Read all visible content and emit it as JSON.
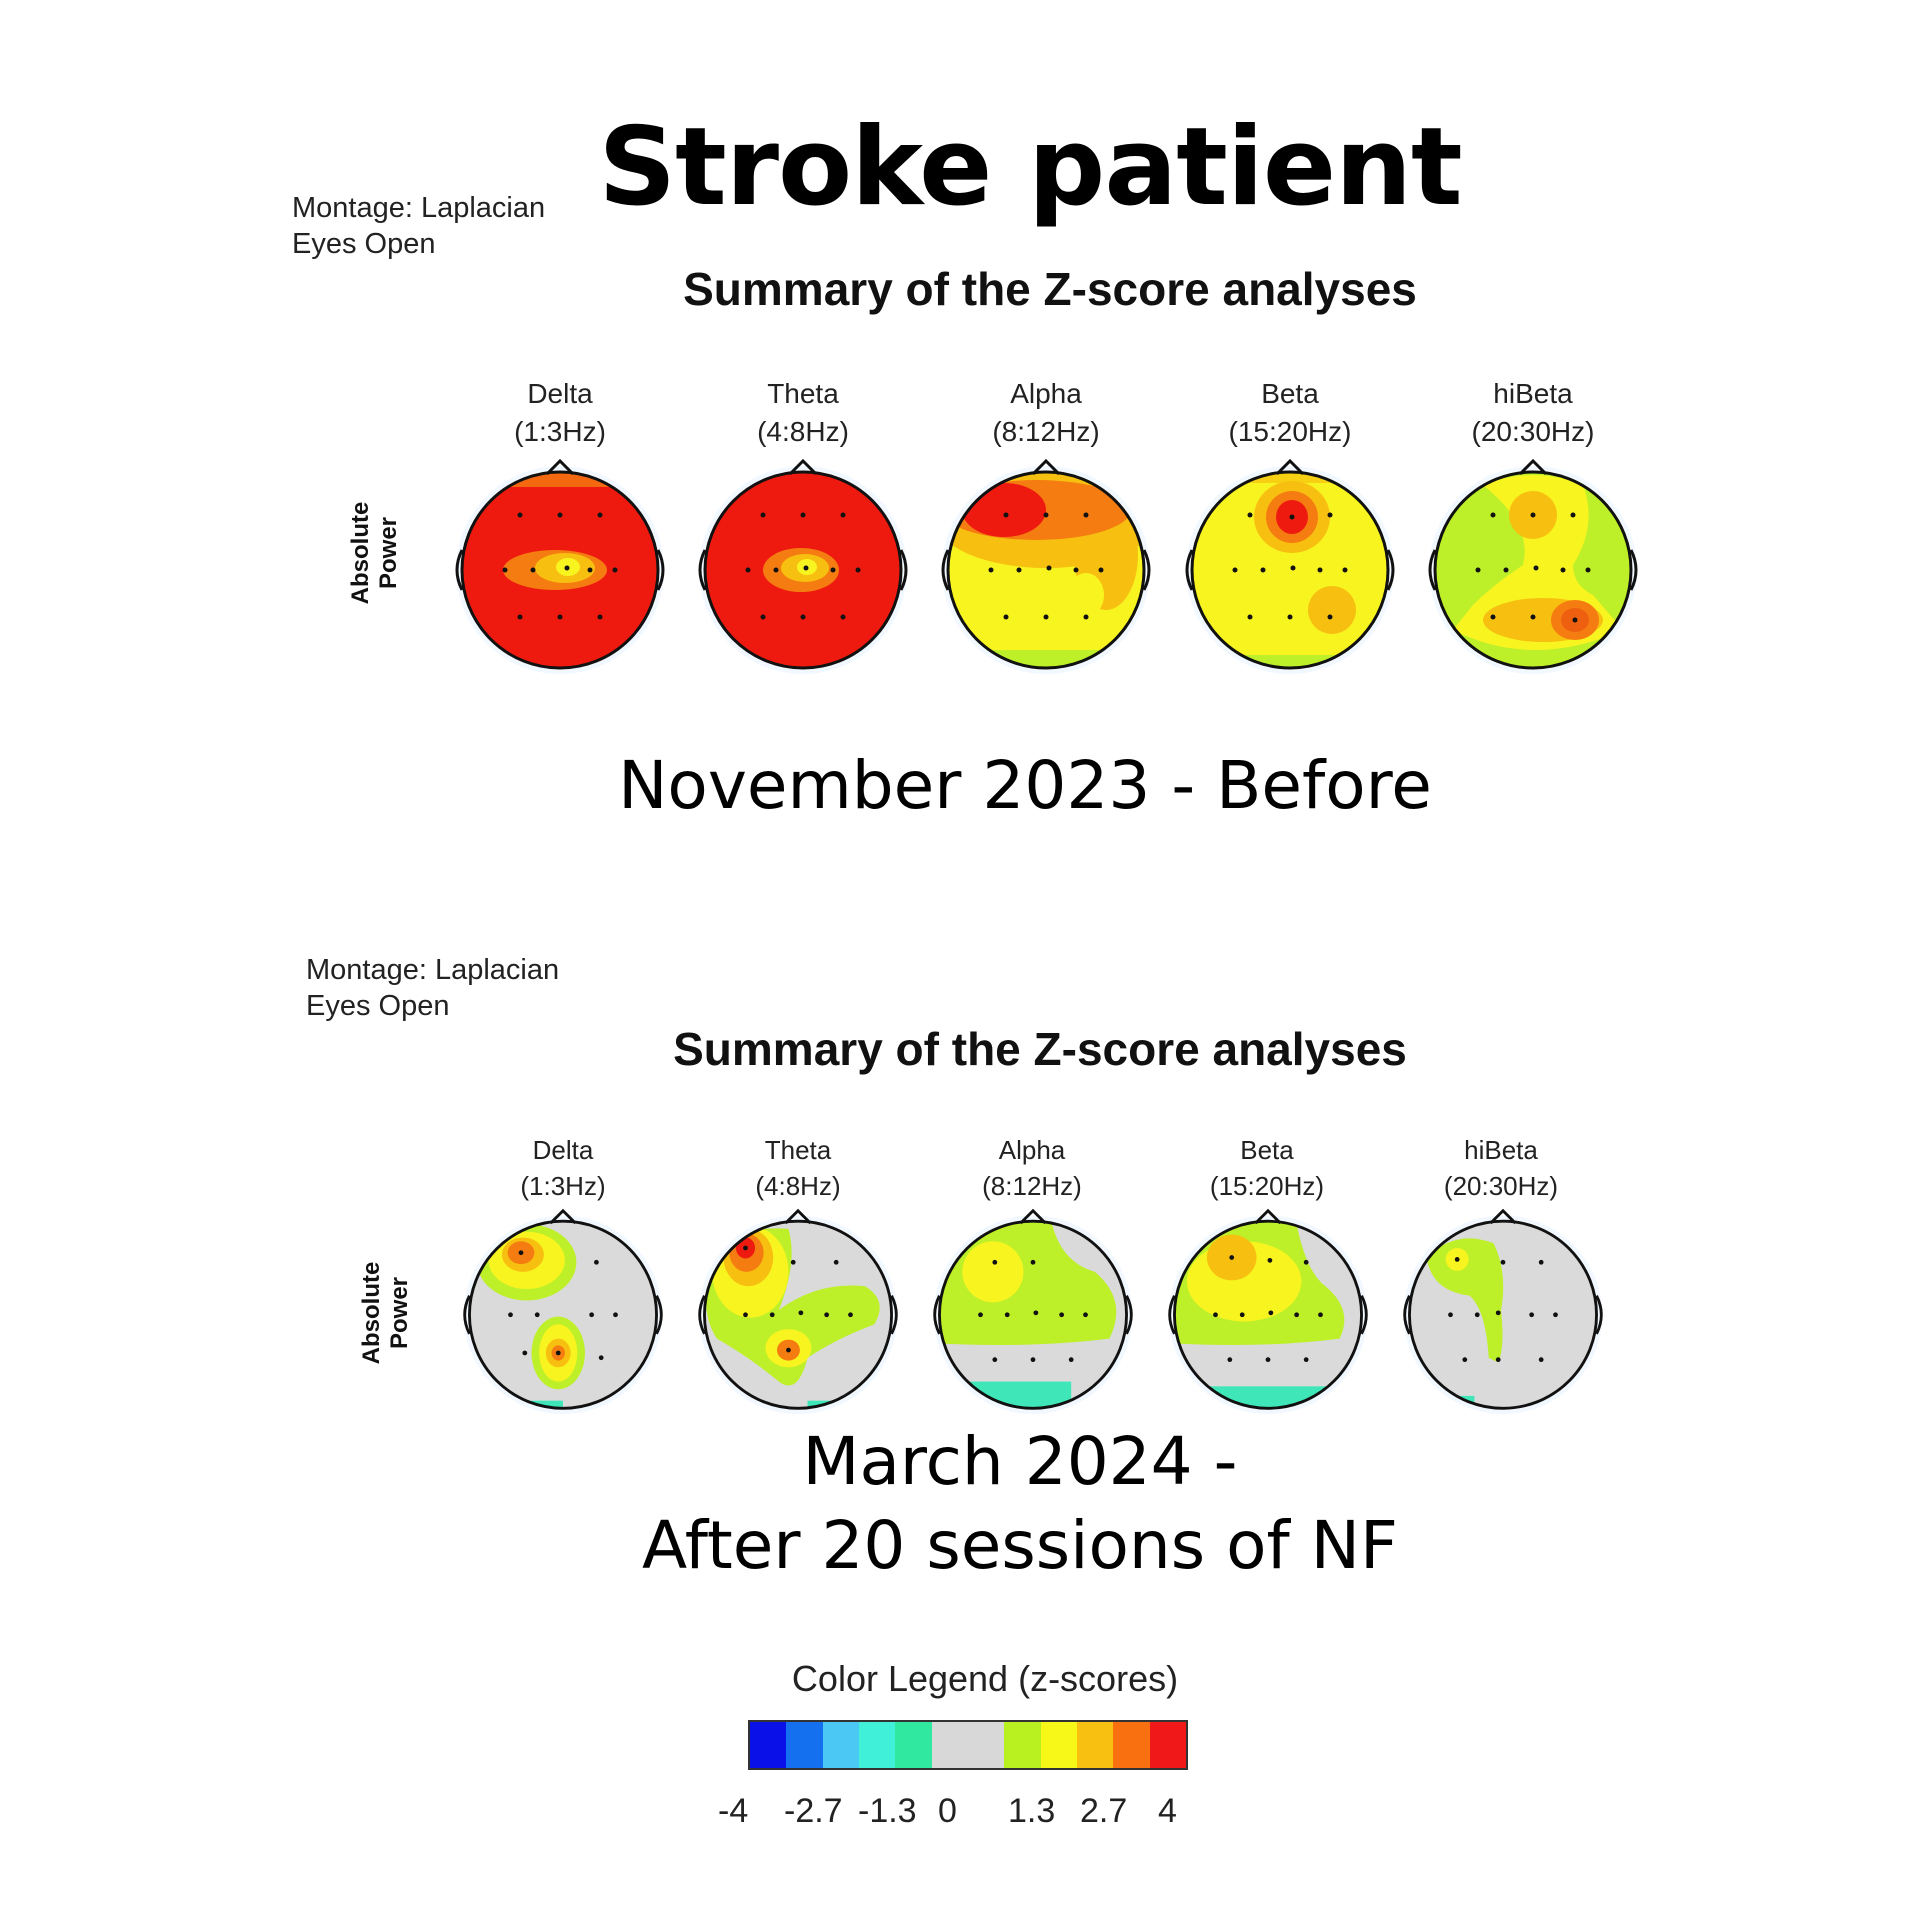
{
  "title": "Stroke patient",
  "sections": [
    {
      "montage": "Montage: Laplacian",
      "condition": "Eyes Open",
      "summary_title": "Summary of the Z-score analyses",
      "row_label_1": "Absolute",
      "row_label_2": "Power",
      "bands": [
        {
          "name": "Delta",
          "range": "(1:3Hz)"
        },
        {
          "name": "Theta",
          "range": "(4:8Hz)"
        },
        {
          "name": "Alpha",
          "range": "(8:12Hz)"
        },
        {
          "name": "Beta",
          "range": "(15:20Hz)"
        },
        {
          "name": "hiBeta",
          "range": "(20:30Hz)"
        }
      ],
      "caption_line1": "November 2023 - Before",
      "caption_line2": ""
    },
    {
      "montage": "Montage: Laplacian",
      "condition": "Eyes Open",
      "summary_title": "Summary of the Z-score analyses",
      "row_label_1": "Absolute",
      "row_label_2": "Power",
      "bands": [
        {
          "name": "Delta",
          "range": "(1:3Hz)"
        },
        {
          "name": "Theta",
          "range": "(4:8Hz)"
        },
        {
          "name": "Alpha",
          "range": "(8:12Hz)"
        },
        {
          "name": "Beta",
          "range": "(15:20Hz)"
        },
        {
          "name": "hiBeta",
          "range": "(20:30Hz)"
        }
      ],
      "caption_line1": "March 2024 -",
      "caption_line2": "After 20 sessions of NF"
    }
  ],
  "legend": {
    "title": "Color Legend (z-scores)",
    "colors": [
      "#0a10e8",
      "#1570ef",
      "#4cc8f5",
      "#40f0d8",
      "#30e8a0",
      "#d8d8d8",
      "#d8d8d8",
      "#b8f020",
      "#f8f818",
      "#f8c010",
      "#f87010",
      "#f01818"
    ],
    "ticks": [
      "-4",
      "-2.7",
      "-1.3",
      "0",
      "1.3",
      "2.7",
      "4"
    ]
  },
  "colors": {
    "red": "#ee1a10",
    "orange": "#f57c10",
    "gold": "#f7c010",
    "yellow": "#f8f420",
    "lime": "#bdf028",
    "gray": "#dadada",
    "teal": "#3ee6b8"
  }
}
